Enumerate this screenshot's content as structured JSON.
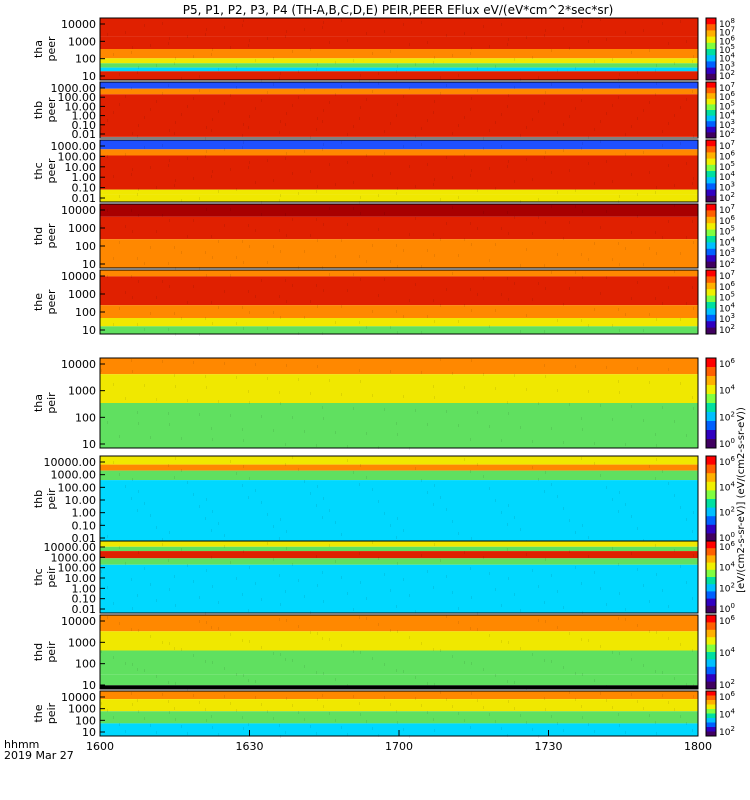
{
  "chart_data": {
    "type": "heatmap",
    "title": "P5, P1, P2, P3, P4 (TH-A,B,C,D,E) PEIR,PEER EFlux eV/(eV*cm^2*sec*sr)",
    "time_axis": {
      "label_top": "hhmm",
      "label_bottom": "2019 Mar 27",
      "ticks": [
        "1600",
        "1630",
        "1700",
        "1730",
        "1800"
      ]
    },
    "colorbar_units": "[eV/(cm2-s-sr-eV)] (eV/(cm2-s-sr-eV))",
    "colors": {
      "dark_red": "#a80000",
      "red": "#e02000",
      "orange": "#ff8800",
      "yellow": "#f0e800",
      "green": "#60e060",
      "cyan": "#00d8ff",
      "blue": "#2050ff",
      "navy": "#000080",
      "black": "#000000"
    },
    "panels": [
      {
        "id": "tha-peer",
        "label_line1": "tha",
        "label_line2": "peer",
        "yticks": [
          "10000",
          "1000",
          "100",
          "10"
        ],
        "colorbar_ticks": [
          "10^8",
          "10^7",
          "10^6",
          "10^5",
          "10^4",
          "10^3",
          "10^2"
        ],
        "bands": [
          {
            "y": [
              0.0,
              0.3
            ],
            "color": "red"
          },
          {
            "y": [
              0.3,
              0.5
            ],
            "color": "red"
          },
          {
            "y": [
              0.5,
              0.65
            ],
            "color": "orange"
          },
          {
            "y": [
              0.65,
              0.73
            ],
            "color": "yellow"
          },
          {
            "y": [
              0.73,
              0.8
            ],
            "color": "green"
          },
          {
            "y": [
              0.8,
              0.86
            ],
            "color": "cyan"
          },
          {
            "y": [
              0.86,
              1.0
            ],
            "color": "red"
          }
        ]
      },
      {
        "id": "thb-peer",
        "label_line1": "thb",
        "label_line2": "peer",
        "yticks": [
          "1000.00",
          "100.00",
          "10.00",
          "1.00",
          "0.10",
          "0.01"
        ],
        "colorbar_ticks": [
          "10^7",
          "10^6",
          "10^5",
          "10^4",
          "10^3",
          "10^2"
        ],
        "bands": [
          {
            "y": [
              0.0,
              0.12
            ],
            "color": "blue"
          },
          {
            "y": [
              0.12,
              0.22
            ],
            "color": "orange"
          },
          {
            "y": [
              0.22,
              0.98
            ],
            "color": "red"
          }
        ]
      },
      {
        "id": "thc-peer",
        "label_line1": "thc",
        "label_line2": "peer",
        "yticks": [
          "1000.00",
          "100.00",
          "10.00",
          "1.00",
          "0.10",
          "0.01"
        ],
        "colorbar_ticks": [
          "10^7",
          "10^6",
          "10^5",
          "10^4",
          "10^3",
          "10^2"
        ],
        "bands": [
          {
            "y": [
              0.0,
              0.15
            ],
            "color": "blue"
          },
          {
            "y": [
              0.15,
              0.25
            ],
            "color": "orange"
          },
          {
            "y": [
              0.25,
              0.8
            ],
            "color": "red"
          },
          {
            "y": [
              0.8,
              0.88
            ],
            "color": "yellow"
          },
          {
            "y": [
              0.88,
              1.0
            ],
            "color": "yellow"
          }
        ]
      },
      {
        "id": "thd-peer",
        "label_line1": "thd",
        "label_line2": "peer",
        "yticks": [
          "10000",
          "1000",
          "100",
          "10"
        ],
        "colorbar_ticks": [
          "10^7",
          "10^6",
          "10^5",
          "10^4",
          "10^3",
          "10^2"
        ],
        "bands": [
          {
            "y": [
              0.0,
              0.2
            ],
            "color": "dark_red"
          },
          {
            "y": [
              0.2,
              0.55
            ],
            "color": "red"
          },
          {
            "y": [
              0.55,
              1.0
            ],
            "color": "orange"
          }
        ]
      },
      {
        "id": "the-peer",
        "label_line1": "the",
        "label_line2": "peer",
        "yticks": [
          "10000",
          "1000",
          "100",
          "10"
        ],
        "colorbar_ticks": [
          "10^7",
          "10^6",
          "10^5",
          "10^4",
          "10^3",
          "10^2"
        ],
        "bands": [
          {
            "y": [
              0.0,
              0.1
            ],
            "color": "orange"
          },
          {
            "y": [
              0.1,
              0.55
            ],
            "color": "red"
          },
          {
            "y": [
              0.55,
              0.75
            ],
            "color": "orange"
          },
          {
            "y": [
              0.75,
              0.88
            ],
            "color": "yellow"
          },
          {
            "y": [
              0.88,
              1.0
            ],
            "color": "green"
          }
        ]
      },
      {
        "id": "tha-peir",
        "label_line1": "tha",
        "label_line2": "peir",
        "yticks": [
          "10000",
          "1000",
          "100",
          "10"
        ],
        "colorbar_ticks": [
          "10^6",
          "10^4",
          "10^2",
          "10^0"
        ],
        "bands": [
          {
            "y": [
              0.0,
              0.18
            ],
            "color": "orange"
          },
          {
            "y": [
              0.18,
              0.5
            ],
            "color": "yellow"
          },
          {
            "y": [
              0.5,
              1.0
            ],
            "color": "green"
          }
        ]
      },
      {
        "id": "thb-peir",
        "label_line1": "thb",
        "label_line2": "peir",
        "yticks": [
          "10000.00",
          "1000.00",
          "100.00",
          "10.00",
          "1.00",
          "0.10",
          "0.01"
        ],
        "colorbar_ticks": [
          "10^6",
          "10^4",
          "10^2",
          "10^0"
        ],
        "bands": [
          {
            "y": [
              0.0,
              0.1
            ],
            "color": "yellow"
          },
          {
            "y": [
              0.1,
              0.17
            ],
            "color": "orange"
          },
          {
            "y": [
              0.17,
              0.28
            ],
            "color": "green"
          },
          {
            "y": [
              0.28,
              1.0
            ],
            "color": "cyan"
          }
        ]
      },
      {
        "id": "thc-peir",
        "label_line1": "thc",
        "label_line2": "peir",
        "yticks": [
          "10000.00",
          "1000.00",
          "100.00",
          "10.00",
          "1.00",
          "0.10",
          "0.01"
        ],
        "colorbar_ticks": [
          "10^6",
          "10^4",
          "10^2",
          "10^0"
        ],
        "bands": [
          {
            "y": [
              0.0,
              0.08
            ],
            "color": "yellow"
          },
          {
            "y": [
              0.08,
              0.14
            ],
            "color": "green"
          },
          {
            "y": [
              0.14,
              0.24
            ],
            "color": "red"
          },
          {
            "y": [
              0.24,
              0.33
            ],
            "color": "green"
          },
          {
            "y": [
              0.33,
              1.0
            ],
            "color": "cyan"
          }
        ]
      },
      {
        "id": "thd-peir",
        "label_line1": "thd",
        "label_line2": "peir",
        "yticks": [
          "10000",
          "1000",
          "100",
          "10"
        ],
        "colorbar_ticks": [
          "10^6",
          "10^4",
          "10^2"
        ],
        "bands": [
          {
            "y": [
              0.0,
              0.22
            ],
            "color": "orange"
          },
          {
            "y": [
              0.22,
              0.48
            ],
            "color": "yellow"
          },
          {
            "y": [
              0.48,
              0.8
            ],
            "color": "green"
          },
          {
            "y": [
              0.8,
              0.95
            ],
            "color": "green"
          },
          {
            "y": [
              0.95,
              1.0
            ],
            "color": "black"
          }
        ]
      },
      {
        "id": "the-peir",
        "label_line1": "the",
        "label_line2": "peir",
        "yticks": [
          "10000",
          "1000",
          "100",
          "10"
        ],
        "colorbar_ticks": [
          "10^6",
          "10^4",
          "10^2"
        ],
        "bands": [
          {
            "y": [
              0.0,
              0.18
            ],
            "color": "orange"
          },
          {
            "y": [
              0.18,
              0.45
            ],
            "color": "yellow"
          },
          {
            "y": [
              0.45,
              0.72
            ],
            "color": "green"
          },
          {
            "y": [
              0.72,
              1.0
            ],
            "color": "cyan"
          }
        ]
      }
    ]
  }
}
